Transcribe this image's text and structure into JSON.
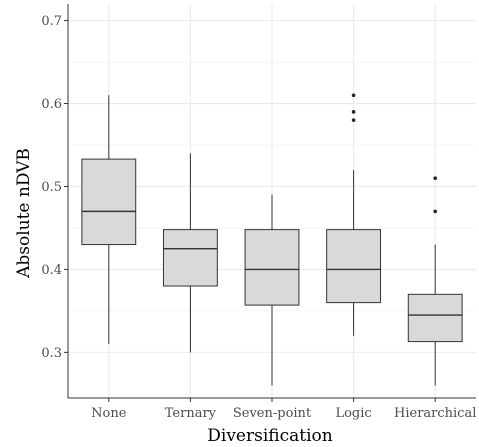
{
  "chart_data": {
    "type": "boxplot",
    "xlabel": "Diversification",
    "ylabel": "Absolute nDVB",
    "ylim": [
      0.245,
      0.72
    ],
    "yticks": [
      0.3,
      0.4,
      0.5,
      0.6,
      0.7
    ],
    "ytick_labels": [
      "0.3",
      "0.4",
      "0.5",
      "0.6",
      "0.7"
    ],
    "grid": true,
    "categories": [
      "None",
      "Ternary",
      "Seven-point",
      "Logic",
      "Hierarchical"
    ],
    "boxes": [
      {
        "category": "None",
        "whisker_low": 0.31,
        "q1": 0.43,
        "median": 0.47,
        "q3": 0.533,
        "whisker_high": 0.61,
        "outliers": []
      },
      {
        "category": "Ternary",
        "whisker_low": 0.3,
        "q1": 0.38,
        "median": 0.425,
        "q3": 0.448,
        "whisker_high": 0.54,
        "outliers": []
      },
      {
        "category": "Seven-point",
        "whisker_low": 0.26,
        "q1": 0.357,
        "median": 0.4,
        "q3": 0.448,
        "whisker_high": 0.49,
        "outliers": []
      },
      {
        "category": "Logic",
        "whisker_low": 0.32,
        "q1": 0.36,
        "median": 0.4,
        "q3": 0.448,
        "whisker_high": 0.52,
        "outliers": [
          0.58,
          0.59,
          0.61
        ]
      },
      {
        "category": "Hierarchical",
        "whisker_low": 0.26,
        "q1": 0.313,
        "median": 0.345,
        "q3": 0.37,
        "whisker_high": 0.43,
        "outliers": [
          0.47,
          0.51
        ]
      }
    ],
    "colors": {
      "box_fill": "#d9d9d9",
      "box_stroke": "#333333",
      "grid": "#ebebeb",
      "grid_minor": "#f3f3f3",
      "axis": "#333333"
    }
  }
}
